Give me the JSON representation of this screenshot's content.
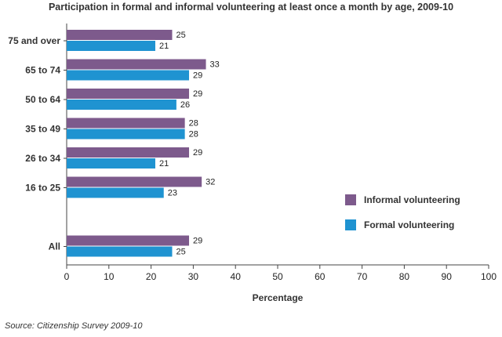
{
  "chart_data": {
    "type": "bar",
    "orientation": "horizontal",
    "title": "Participation in formal and informal volunteering at least once a month by age, 2009-10",
    "xlabel": "Percentage",
    "ylabel": "",
    "xlim": [
      0,
      100
    ],
    "x_ticks": [
      "0",
      "10",
      "20",
      "30",
      "40",
      "50",
      "60",
      "70",
      "80",
      "90",
      "100"
    ],
    "categories": [
      "75 and over",
      "65 to 74",
      "50 to 64",
      "35 to 49",
      "26 to 34",
      "16 to 25",
      "",
      "All"
    ],
    "series": [
      {
        "name": "Informal volunteering",
        "color": "#7d5a8c",
        "values": [
          25,
          33,
          29,
          28,
          29,
          32,
          null,
          29
        ]
      },
      {
        "name": "Formal volunteering",
        "color": "#1f93d1",
        "values": [
          21,
          29,
          26,
          28,
          21,
          23,
          null,
          25
        ]
      }
    ],
    "legend_position": "right",
    "grid": false
  },
  "source": "Source: Citizenship Survey 2009-10"
}
